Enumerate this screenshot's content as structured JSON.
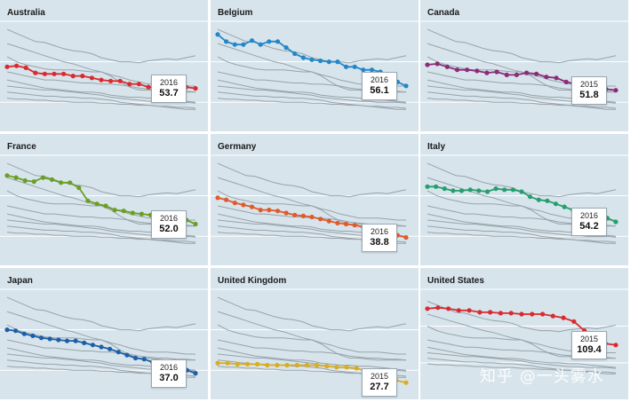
{
  "chart_data": {
    "type": "line",
    "layout": "3x3 small multiples with grey background lines for the other countries",
    "grid": true,
    "panels": [
      {
        "title": "Australia",
        "color": "#d92b2f",
        "end_label": {
          "year": "2016",
          "value": "53.7"
        },
        "values": [
          75,
          76,
          74,
          69,
          68,
          68,
          68,
          66,
          66,
          64,
          62,
          61,
          61,
          58,
          58,
          55,
          54,
          54,
          55,
          55,
          53.7
        ]
      },
      {
        "title": "Belgium",
        "color": "#2287c9",
        "end_label": {
          "year": "2016",
          "value": "56.1"
        },
        "values": [
          107,
          100,
          97,
          97,
          101,
          97,
          100,
          100,
          94,
          88,
          84,
          82,
          81,
          80,
          80,
          75,
          75,
          72,
          72,
          70,
          67,
          60,
          56.1
        ]
      },
      {
        "title": "Canada",
        "color": "#8b2b79",
        "end_label": {
          "year": "2015",
          "value": "51.8"
        },
        "values": [
          77,
          78,
          75,
          72,
          72,
          71,
          69,
          70,
          67,
          67,
          69,
          68,
          65,
          64,
          60,
          58,
          57,
          54,
          53,
          51.8
        ]
      },
      {
        "title": "France",
        "color": "#6a9e25",
        "end_label": {
          "year": "2016",
          "value": "52.0"
        },
        "values": [
          100,
          98,
          95,
          94,
          98,
          96,
          93,
          93,
          88,
          75,
          72,
          70,
          66,
          65,
          63,
          62,
          61,
          60,
          58,
          57,
          56,
          52.0
        ]
      },
      {
        "title": "Germany",
        "color": "#e05a2b",
        "end_label": {
          "year": "2016",
          "value": "38.8"
        },
        "values": [
          78,
          76,
          73,
          71,
          69,
          66,
          66,
          65,
          63,
          61,
          60,
          59,
          57,
          55,
          53,
          52,
          51,
          49,
          47,
          45,
          45,
          41,
          38.8
        ]
      },
      {
        "title": "Italy",
        "color": "#279e6d",
        "end_label": {
          "year": "2016",
          "value": "54.2"
        },
        "values": [
          89,
          89,
          87,
          85,
          85,
          86,
          85,
          84,
          87,
          86,
          86,
          84,
          79,
          76,
          75,
          72,
          69,
          66,
          64,
          61,
          59,
          58,
          54.2
        ]
      },
      {
        "title": "Japan",
        "color": "#1c5fa8",
        "end_label": {
          "year": "2016",
          "value": "37.0"
        },
        "values": [
          80,
          79,
          76,
          74,
          72,
          71,
          70,
          69,
          69,
          67,
          65,
          63,
          61,
          58,
          55,
          52,
          51,
          48,
          46,
          46,
          45,
          40,
          37.0
        ]
      },
      {
        "title": "United Kingdom",
        "color": "#d9ad1f",
        "end_label": {
          "year": "2015",
          "value": "27.7"
        },
        "values": [
          47,
          47,
          46,
          46,
          46,
          45,
          45,
          45,
          45,
          45,
          45,
          44,
          43,
          43,
          42,
          39,
          36,
          33,
          30,
          27.7
        ]
      },
      {
        "title": "United States",
        "color": "#d92b2f",
        "end_label": {
          "year": "2015",
          "value": "109.4"
        },
        "values": [
          149,
          150,
          149,
          147,
          147,
          145,
          145,
          144,
          144,
          143,
          143,
          143,
          141,
          139,
          135,
          125,
          115,
          111,
          109.4
        ]
      }
    ],
    "background_lines": [
      [
        112,
        108,
        104,
        100,
        99,
        96,
        93,
        91,
        90,
        88,
        84,
        82,
        80,
        80,
        79,
        81,
        82,
        83,
        82,
        84,
        86
      ],
      [
        98,
        95,
        92,
        89,
        86,
        83,
        80,
        78,
        75,
        72,
        70,
        67,
        65,
        62,
        60,
        58,
        58,
        58,
        57,
        56,
        56
      ],
      [
        85,
        80,
        77,
        75,
        73,
        72,
        72,
        72,
        71,
        70,
        70,
        66,
        60,
        55,
        52,
        52,
        51,
        50,
        50,
        50,
        50
      ],
      [
        70,
        68,
        66,
        64,
        62,
        62,
        61,
        60,
        59,
        59,
        58,
        58,
        57,
        56,
        54,
        53,
        52,
        52,
        51,
        51,
        50
      ],
      [
        62,
        60,
        58,
        56,
        54,
        53,
        52,
        51,
        50,
        50,
        49,
        47,
        46,
        45,
        45,
        44,
        44,
        43,
        42,
        41,
        40
      ],
      [
        56,
        55,
        54,
        53,
        52,
        52,
        51,
        50,
        49,
        48,
        47,
        45,
        44,
        43,
        42,
        41,
        41,
        40,
        40,
        40,
        39
      ],
      [
        50,
        49,
        48,
        47,
        46,
        46,
        45,
        45,
        44,
        44,
        43,
        42,
        40,
        39,
        38,
        37,
        36,
        35,
        34,
        33,
        33
      ],
      [
        44,
        43,
        43,
        42,
        42,
        41,
        41,
        40,
        40,
        40,
        39,
        39,
        38,
        38,
        37,
        37,
        36,
        36,
        35,
        35,
        34
      ]
    ],
    "y_gridlines": [
      40,
      80,
      120
    ]
  },
  "watermark": "知乎 @一头雾水"
}
